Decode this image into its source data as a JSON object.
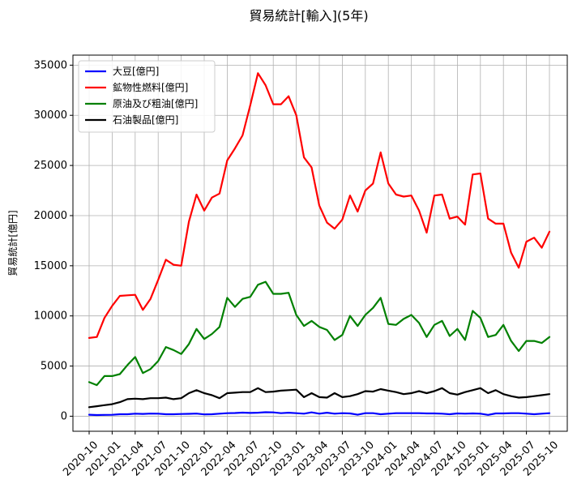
{
  "chart_data": {
    "type": "line",
    "title": "貿易統計[輸入](5年)",
    "xlabel": "",
    "ylabel": "貿易統計[億円]",
    "ylim": [
      -1500,
      36000
    ],
    "yticks": [
      0,
      5000,
      10000,
      15000,
      20000,
      25000,
      30000,
      35000
    ],
    "grid": true,
    "legend_position": "upper-left",
    "x_tick_labels": [
      "2020-10",
      "2021-01",
      "2021-04",
      "2021-07",
      "2021-10",
      "2022-01",
      "2022-04",
      "2022-07",
      "2022-10",
      "2023-01",
      "2023-04",
      "2023-07",
      "2023-10",
      "2024-01",
      "2024-04",
      "2024-07",
      "2024-10",
      "2025-01",
      "2025-04",
      "2025-07",
      "2025-10"
    ],
    "x": [
      "2020-10",
      "2020-11",
      "2020-12",
      "2021-01",
      "2021-02",
      "2021-03",
      "2021-04",
      "2021-05",
      "2021-06",
      "2021-07",
      "2021-08",
      "2021-09",
      "2021-10",
      "2021-11",
      "2021-12",
      "2022-01",
      "2022-02",
      "2022-03",
      "2022-04",
      "2022-05",
      "2022-06",
      "2022-07",
      "2022-08",
      "2022-09",
      "2022-10",
      "2022-11",
      "2022-12",
      "2023-01",
      "2023-02",
      "2023-03",
      "2023-04",
      "2023-05",
      "2023-06",
      "2023-07",
      "2023-08",
      "2023-09",
      "2023-10",
      "2023-11",
      "2023-12",
      "2024-01",
      "2024-02",
      "2024-03",
      "2024-04",
      "2024-05",
      "2024-06",
      "2024-07",
      "2024-08",
      "2024-09",
      "2024-10",
      "2024-11",
      "2024-12",
      "2025-01",
      "2025-02",
      "2025-03",
      "2025-04",
      "2025-05",
      "2025-06",
      "2025-07",
      "2025-08",
      "2025-09",
      "2025-10"
    ],
    "series": [
      {
        "name": "大豆[億円]",
        "color": "#0000ff",
        "values": [
          150,
          120,
          130,
          140,
          200,
          200,
          250,
          230,
          260,
          250,
          200,
          200,
          220,
          240,
          260,
          180,
          200,
          250,
          300,
          320,
          360,
          330,
          350,
          400,
          380,
          300,
          350,
          300,
          250,
          380,
          250,
          350,
          250,
          300,
          280,
          150,
          300,
          300,
          200,
          250,
          300,
          300,
          300,
          300,
          280,
          280,
          250,
          200,
          280,
          250,
          280,
          250,
          130,
          280,
          280,
          300,
          300,
          250,
          200,
          250,
          300
        ]
      },
      {
        "name": "鉱物性燃料[億円]",
        "color": "#ff0000",
        "values": [
          7800,
          7900,
          9800,
          11000,
          12000,
          12050,
          12100,
          10600,
          11700,
          13600,
          15600,
          15100,
          15000,
          19400,
          22100,
          20500,
          21800,
          22200,
          25500,
          26700,
          28000,
          31000,
          34200,
          33000,
          31100,
          31100,
          31900,
          30000,
          25800,
          24800,
          21000,
          19300,
          18700,
          19600,
          22000,
          20400,
          22500,
          23200,
          26300,
          23200,
          22100,
          21900,
          22000,
          20500,
          18300,
          22000,
          22100,
          19700,
          19900,
          19100,
          24100,
          24200,
          19700,
          19200,
          19200,
          16300,
          14800,
          17400,
          17800,
          16800,
          18400
        ]
      },
      {
        "name": "原油及び粗油[億円]",
        "color": "#008000",
        "values": [
          3400,
          3100,
          4000,
          4000,
          4200,
          5100,
          5900,
          4300,
          4700,
          5500,
          6900,
          6600,
          6200,
          7200,
          8700,
          7700,
          8200,
          8900,
          11800,
          10900,
          11700,
          11900,
          13100,
          13400,
          12200,
          12200,
          12300,
          10100,
          9000,
          9500,
          8900,
          8600,
          7600,
          8100,
          10000,
          9000,
          10100,
          10800,
          11800,
          9200,
          9100,
          9700,
          10100,
          9300,
          7900,
          9100,
          9500,
          8000,
          8700,
          7600,
          10500,
          9800,
          7900,
          8100,
          9100,
          7500,
          6500,
          7500,
          7500,
          7300,
          7900
        ]
      },
      {
        "name": "石油製品[億円]",
        "color": "#000000",
        "values": [
          900,
          1000,
          1100,
          1200,
          1400,
          1700,
          1750,
          1700,
          1800,
          1800,
          1850,
          1700,
          1800,
          2300,
          2600,
          2300,
          2100,
          1800,
          2300,
          2350,
          2400,
          2400,
          2800,
          2400,
          2450,
          2550,
          2600,
          2650,
          1900,
          2300,
          1900,
          1850,
          2300,
          1900,
          2000,
          2200,
          2500,
          2450,
          2700,
          2550,
          2400,
          2200,
          2300,
          2500,
          2300,
          2500,
          2800,
          2300,
          2150,
          2400,
          2600,
          2800,
          2300,
          2600,
          2200,
          2000,
          1850,
          1900,
          2000,
          2100,
          2200
        ]
      }
    ]
  }
}
